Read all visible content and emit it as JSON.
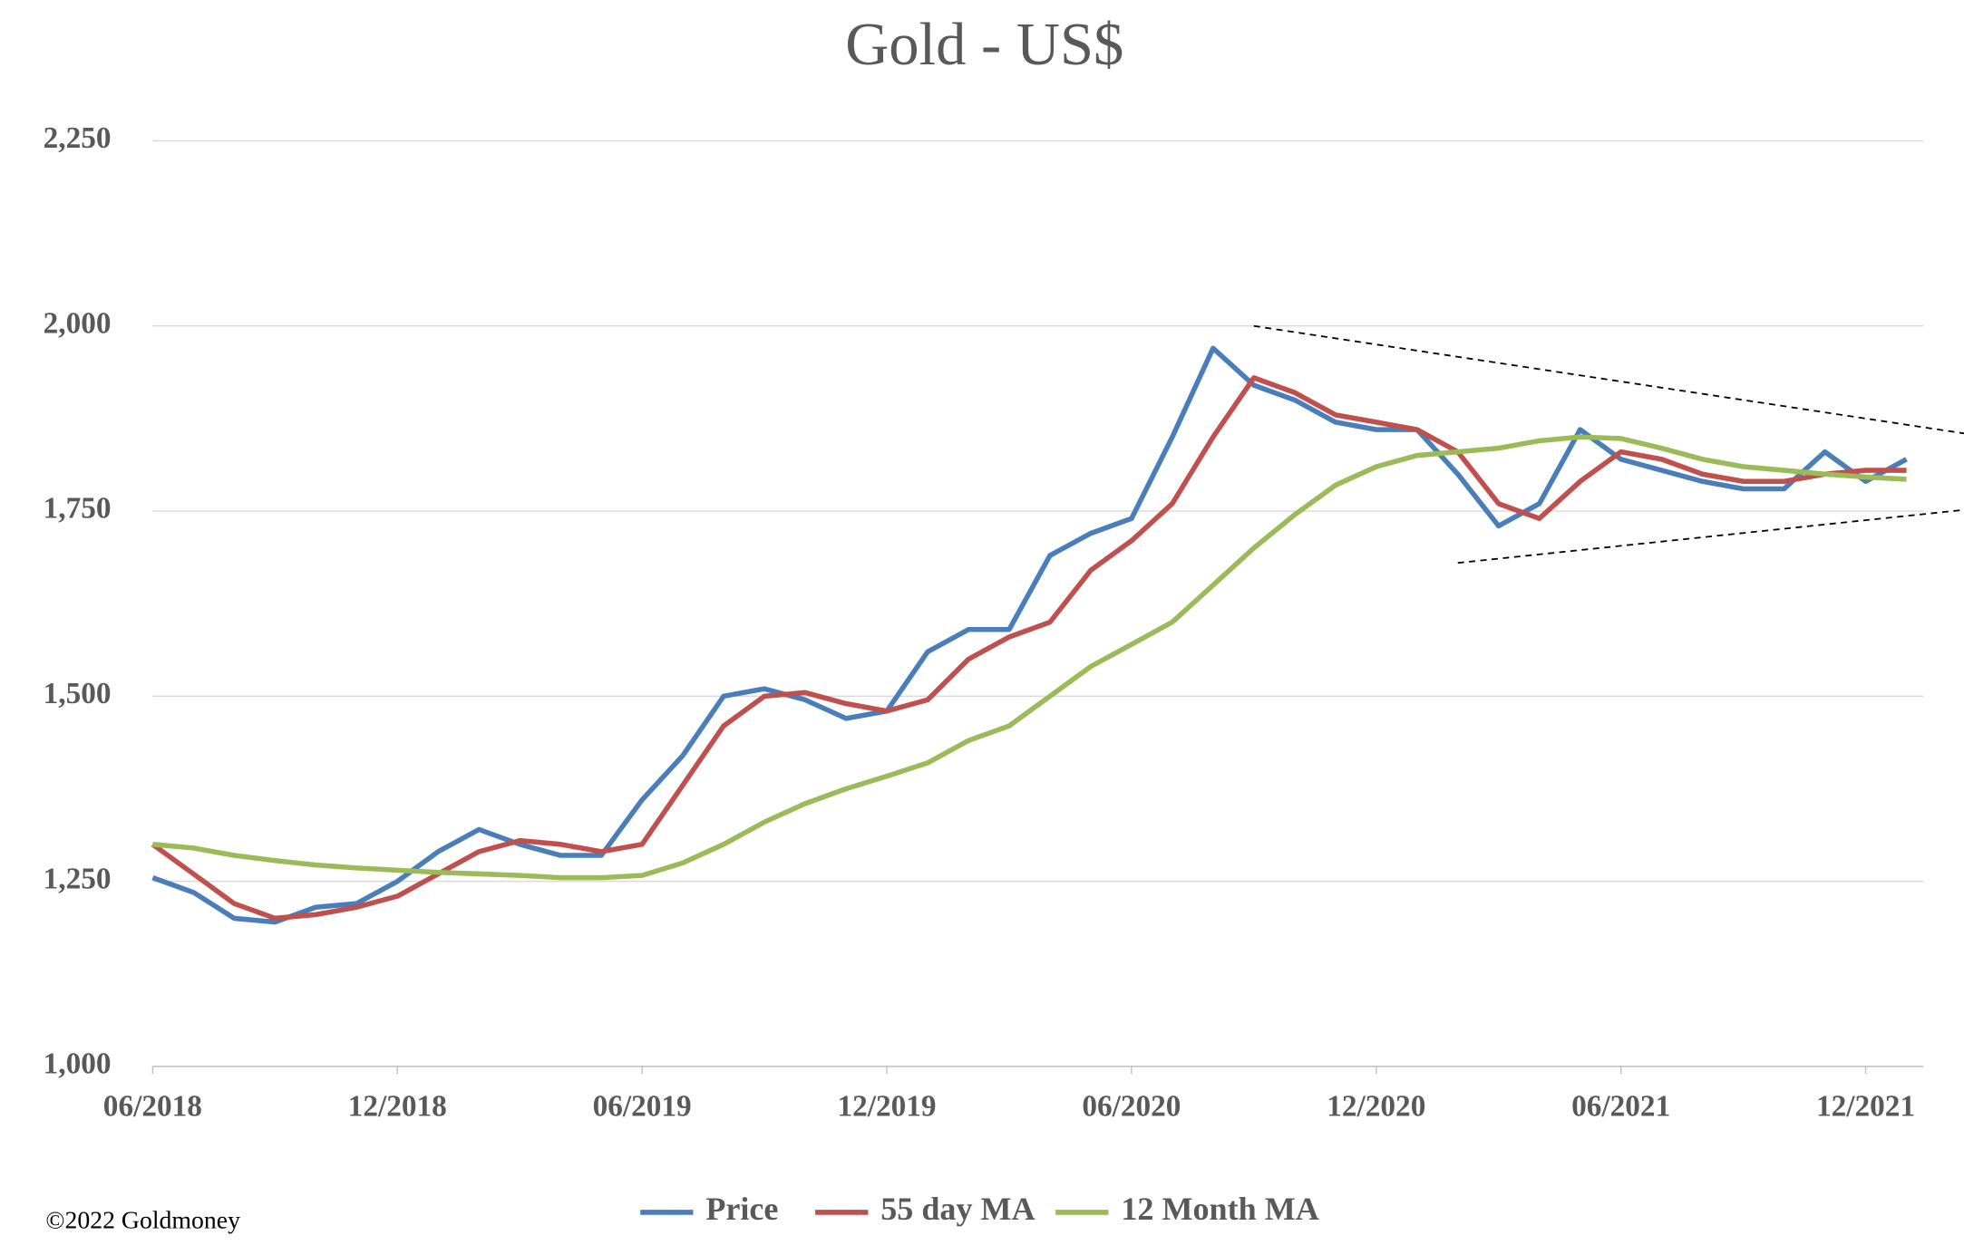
{
  "chart_data": {
    "type": "line",
    "title": "Gold - US$",
    "footer": "©2022 Goldmoney",
    "x": [
      "2018-06",
      "2018-07",
      "2018-08",
      "2018-09",
      "2018-10",
      "2018-11",
      "2018-12",
      "2019-01",
      "2019-02",
      "2019-03",
      "2019-04",
      "2019-05",
      "2019-06",
      "2019-07",
      "2019-08",
      "2019-09",
      "2019-10",
      "2019-11",
      "2019-12",
      "2020-01",
      "2020-02",
      "2020-03",
      "2020-04",
      "2020-05",
      "2020-06",
      "2020-07",
      "2020-08",
      "2020-09",
      "2020-10",
      "2020-11",
      "2020-12",
      "2021-01",
      "2021-02",
      "2021-03",
      "2021-04",
      "2021-05",
      "2021-06",
      "2021-07",
      "2021-08",
      "2021-09",
      "2021-10",
      "2021-11",
      "2021-12",
      "2022-01"
    ],
    "series": [
      {
        "name": "Price",
        "color": "#4a7ebb",
        "values": [
          1255,
          1235,
          1200,
          1195,
          1215,
          1220,
          1250,
          1290,
          1320,
          1300,
          1285,
          1285,
          1360,
          1420,
          1500,
          1510,
          1495,
          1470,
          1480,
          1560,
          1590,
          1590,
          1690,
          1720,
          1740,
          1850,
          1970,
          1920,
          1900,
          1870,
          1860,
          1860,
          1800,
          1730,
          1760,
          1860,
          1820,
          1805,
          1790,
          1780,
          1780,
          1830,
          1790,
          1820
        ]
      },
      {
        "name": "55 day MA",
        "color": "#c0504d",
        "values": [
          1300,
          1260,
          1220,
          1200,
          1205,
          1215,
          1230,
          1260,
          1290,
          1305,
          1300,
          1290,
          1300,
          1380,
          1460,
          1500,
          1505,
          1490,
          1480,
          1495,
          1550,
          1580,
          1600,
          1670,
          1710,
          1760,
          1850,
          1930,
          1910,
          1880,
          1870,
          1860,
          1830,
          1760,
          1740,
          1790,
          1830,
          1820,
          1800,
          1790,
          1790,
          1800,
          1805,
          1805
        ]
      },
      {
        "name": "12 Month MA",
        "color": "#9bbb59",
        "values": [
          1300,
          1295,
          1285,
          1278,
          1272,
          1268,
          1265,
          1262,
          1260,
          1258,
          1255,
          1255,
          1258,
          1275,
          1300,
          1330,
          1355,
          1375,
          1392,
          1410,
          1440,
          1460,
          1500,
          1540,
          1570,
          1600,
          1650,
          1700,
          1745,
          1785,
          1810,
          1825,
          1830,
          1835,
          1845,
          1850,
          1848,
          1835,
          1820,
          1810,
          1805,
          1800,
          1796,
          1793
        ]
      }
    ],
    "trend_lines": [
      {
        "x": [
          "2020-09",
          "2022-03"
        ],
        "y": [
          2000,
          1850
        ]
      },
      {
        "x": [
          "2021-02",
          "2022-03"
        ],
        "y": [
          1680,
          1755
        ]
      }
    ],
    "xlim": [
      "2018-06",
      "2022-02"
    ],
    "xticks": [
      {
        "value": "2018-06",
        "label": "06/2018"
      },
      {
        "value": "2018-12",
        "label": "12/2018"
      },
      {
        "value": "2019-06",
        "label": "06/2019"
      },
      {
        "value": "2019-12",
        "label": "12/2019"
      },
      {
        "value": "2020-06",
        "label": "06/2020"
      },
      {
        "value": "2020-12",
        "label": "12/2020"
      },
      {
        "value": "2021-06",
        "label": "06/2021"
      },
      {
        "value": "2021-12",
        "label": "12/2021"
      }
    ],
    "ylim": [
      1000,
      2250
    ],
    "yticks": [
      {
        "value": 1000,
        "label": "1,000"
      },
      {
        "value": 1250,
        "label": "1,250"
      },
      {
        "value": 1500,
        "label": "1,500"
      },
      {
        "value": 1750,
        "label": "1,750"
      },
      {
        "value": 2000,
        "label": "2,000"
      },
      {
        "value": 2250,
        "label": "2,250"
      }
    ],
    "grid": true,
    "legend": "bottom"
  }
}
